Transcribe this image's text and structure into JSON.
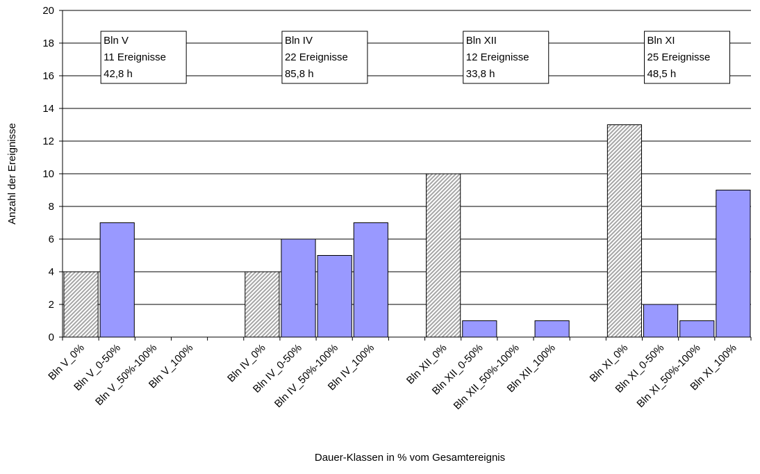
{
  "chart_data": {
    "type": "bar",
    "title": "",
    "xlabel": "Dauer-Klassen in % vom Gesamtereignis",
    "ylabel": "Anzahl der Ereignisse",
    "ylim": [
      0,
      20
    ],
    "yticks": [
      0,
      2,
      4,
      6,
      8,
      10,
      12,
      14,
      16,
      18,
      20
    ],
    "grid": "horizontal",
    "categories": [
      "Bln V_0%",
      "Bln V_0-50%",
      "Bln V_50%-100%",
      "Bln V_100%",
      "",
      "Bln IV_0%",
      "Bln IV_0-50%",
      "Bln IV_50%-100%",
      "Bln IV_100%",
      "",
      "Bln XII_0%",
      "Bln XII_0-50%",
      "Bln XII_50%-100%",
      "Bln XII_100%",
      "",
      "Bln XI_0%",
      "Bln XI_0-50%",
      "Bln XI_50%-100%",
      "Bln XI_100%"
    ],
    "values": [
      4,
      7,
      0,
      0,
      null,
      4,
      6,
      5,
      7,
      null,
      10,
      1,
      0,
      1,
      null,
      13,
      2,
      1,
      9
    ],
    "bar_styles": [
      "hatched",
      "solid",
      "solid",
      "solid",
      "",
      "hatched",
      "solid",
      "solid",
      "solid",
      "",
      "hatched",
      "solid",
      "solid",
      "solid",
      "",
      "hatched",
      "solid",
      "solid",
      "solid"
    ],
    "colors": {
      "solid": "#9999ff",
      "hatched_fg": "#a6a6a6",
      "hatched_bg": "#ffffff"
    },
    "annotations": [
      {
        "group": 0,
        "lines": [
          "Bln V",
          "11 Ereignisse",
          "42,8 h"
        ]
      },
      {
        "group": 1,
        "lines": [
          "Bln IV",
          "22 Ereignisse",
          "85,8 h"
        ]
      },
      {
        "group": 2,
        "lines": [
          "Bln XII",
          "12 Ereignisse",
          "33,8 h"
        ]
      },
      {
        "group": 3,
        "lines": [
          "Bln XI",
          "25 Ereignisse",
          "48,5 h"
        ]
      }
    ]
  }
}
